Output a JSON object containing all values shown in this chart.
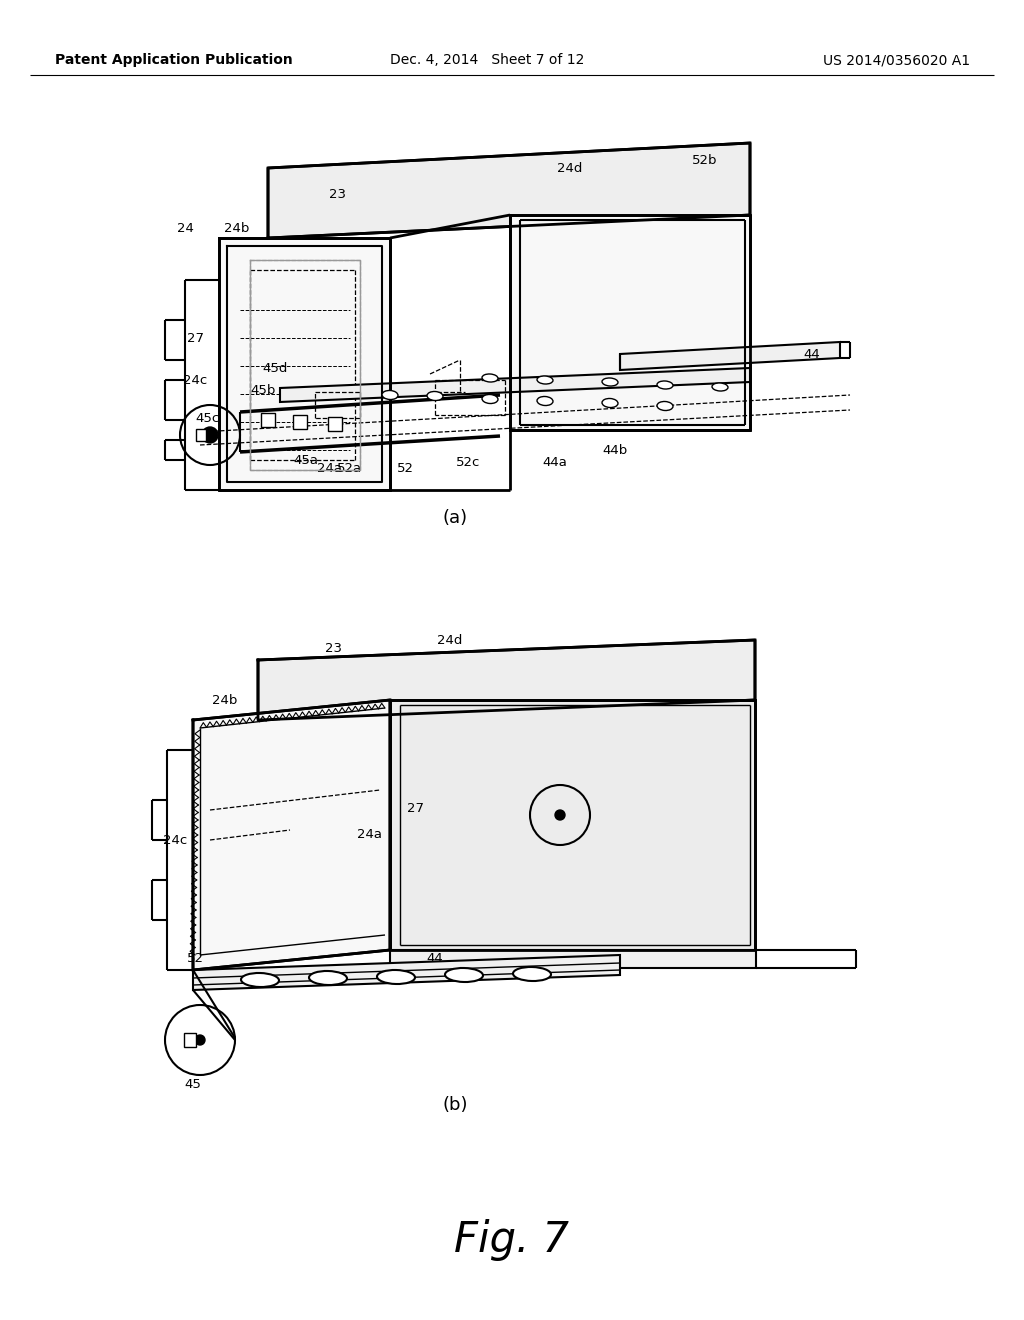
{
  "background_color": "#ffffff",
  "header_left": "Patent Application Publication",
  "header_center": "Dec. 4, 2014   Sheet 7 of 12",
  "header_right": "US 2014/0356020 A1",
  "fig_label": "Fig. 7",
  "sub_a": "(a)",
  "sub_b": "(b)",
  "lw_heavy": 2.0,
  "lw_med": 1.5,
  "lw_thin": 1.0,
  "lw_dash": 0.9,
  "color": "black",
  "bg": "#ffffff"
}
